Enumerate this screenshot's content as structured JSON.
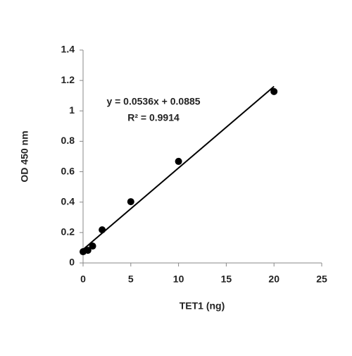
{
  "chart_data": {
    "type": "scatter",
    "x_label": "TET1 (ng)",
    "y_label": "OD 450 nm",
    "x": [
      0,
      0.5,
      1,
      2,
      5,
      10,
      20
    ],
    "values": [
      0.074,
      0.083,
      0.111,
      0.218,
      0.403,
      0.668,
      1.127
    ],
    "color": "#000000",
    "trendline": {
      "slope": 0.0536,
      "intercept": 0.0885,
      "label": "y = 0.0536x + 0.0885",
      "r2_label": "R² = 0.9914",
      "color": "#000000"
    },
    "xlim": [
      0,
      25
    ],
    "xticks": [
      0,
      5,
      10,
      15,
      20,
      25
    ],
    "ylim": [
      0,
      1.4
    ],
    "yticks": [
      0,
      0.2,
      0.4,
      0.6,
      0.8,
      1,
      1.2,
      1.4
    ],
    "grid": false
  }
}
